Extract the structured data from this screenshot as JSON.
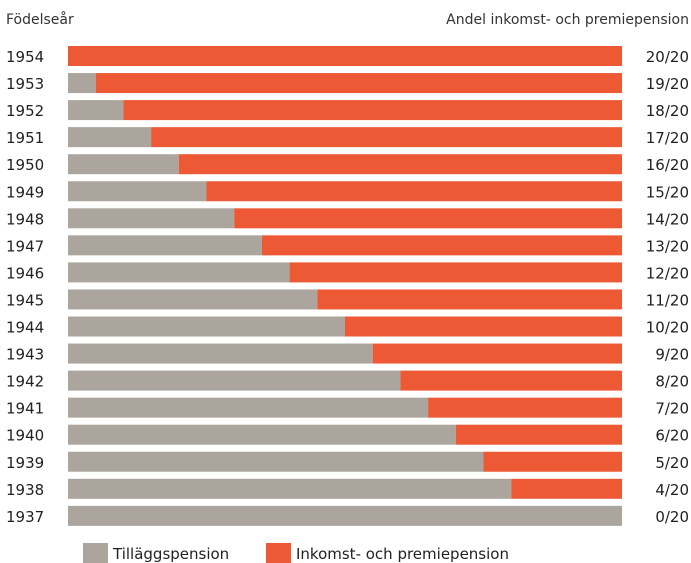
{
  "chart_data": {
    "type": "bar",
    "orientation": "horizontal",
    "stacked": true,
    "title": "",
    "left_header": "Födelseår",
    "right_header": "Andel inkomst- och premiepension",
    "categories": [
      "1954",
      "1953",
      "1952",
      "1951",
      "1950",
      "1949",
      "1948",
      "1947",
      "1946",
      "1945",
      "1944",
      "1943",
      "1942",
      "1941",
      "1940",
      "1939",
      "1938",
      "1937"
    ],
    "right_labels": [
      "20/20",
      "19/20",
      "18/20",
      "17/20",
      "16/20",
      "15/20",
      "14/20",
      "13/20",
      "12/20",
      "11/20",
      "10/20",
      "9/20",
      "8/20",
      "7/20",
      "6/20",
      "5/20",
      "4/20",
      "0/20"
    ],
    "series": [
      {
        "name": "Tilläggspension",
        "color": "#aca59d",
        "values": [
          0,
          1,
          2,
          3,
          4,
          5,
          6,
          7,
          8,
          9,
          10,
          11,
          12,
          13,
          14,
          15,
          16,
          20
        ]
      },
      {
        "name": "Inkomst- och premiepension",
        "color": "#ec5934",
        "values": [
          20,
          19,
          18,
          17,
          16,
          15,
          14,
          13,
          12,
          11,
          10,
          9,
          8,
          7,
          6,
          5,
          4,
          0
        ]
      }
    ],
    "xlim": [
      0,
      20
    ],
    "grid": false,
    "legend_position": "bottom"
  }
}
